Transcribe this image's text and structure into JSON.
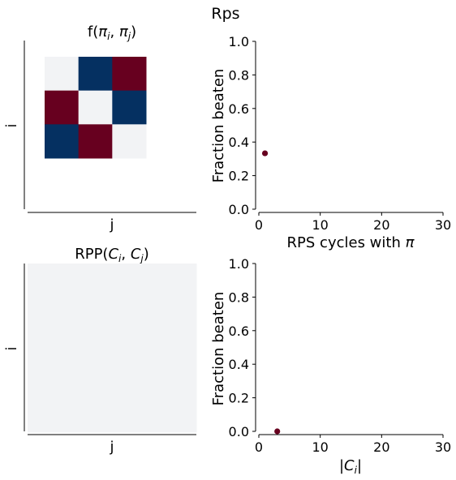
{
  "suptitle": "Rps",
  "colors": {
    "blue": "#053061",
    "red": "#67001F",
    "white": "#F2F3F5",
    "axis": "#000000"
  },
  "chart_data": [
    {
      "type": "heatmap",
      "title_parts": [
        "f(",
        "π",
        "i",
        ", ",
        "π",
        "j",
        ")"
      ],
      "xlabel": "j",
      "ylabel": "i",
      "grid": false,
      "matrix": [
        [
          "white",
          "blue",
          "red"
        ],
        [
          "red",
          "white",
          "blue"
        ],
        [
          "blue",
          "red",
          "white"
        ]
      ]
    },
    {
      "type": "scatter",
      "xlabel_parts": [
        "RPS cycles with ",
        "π"
      ],
      "ylabel": "Fraction beaten",
      "xlim": [
        0,
        30
      ],
      "ylim": [
        0,
        1
      ],
      "xticks": [
        "0",
        "10",
        "20",
        "30"
      ],
      "yticks": [
        "0.0",
        "0.2",
        "0.4",
        "0.6",
        "0.8",
        "1.0"
      ],
      "points": [
        {
          "x": 1,
          "y": 0.333
        }
      ]
    },
    {
      "type": "heatmap",
      "title_parts": [
        "RPP(",
        "C",
        "i",
        ", ",
        "C",
        "j",
        ")"
      ],
      "xlabel": "j",
      "ylabel": "i",
      "grid": false,
      "matrix": [
        [
          "white"
        ]
      ]
    },
    {
      "type": "scatter",
      "xlabel_parts": [
        "|",
        "C",
        "i",
        "|"
      ],
      "ylabel": "Fraction beaten",
      "xlim": [
        0,
        30
      ],
      "ylim": [
        0,
        1
      ],
      "xticks": [
        "0",
        "10",
        "20",
        "30"
      ],
      "yticks": [
        "0.0",
        "0.2",
        "0.4",
        "0.6",
        "0.8",
        "1.0"
      ],
      "points": [
        {
          "x": 3,
          "y": 0.0
        }
      ]
    }
  ]
}
